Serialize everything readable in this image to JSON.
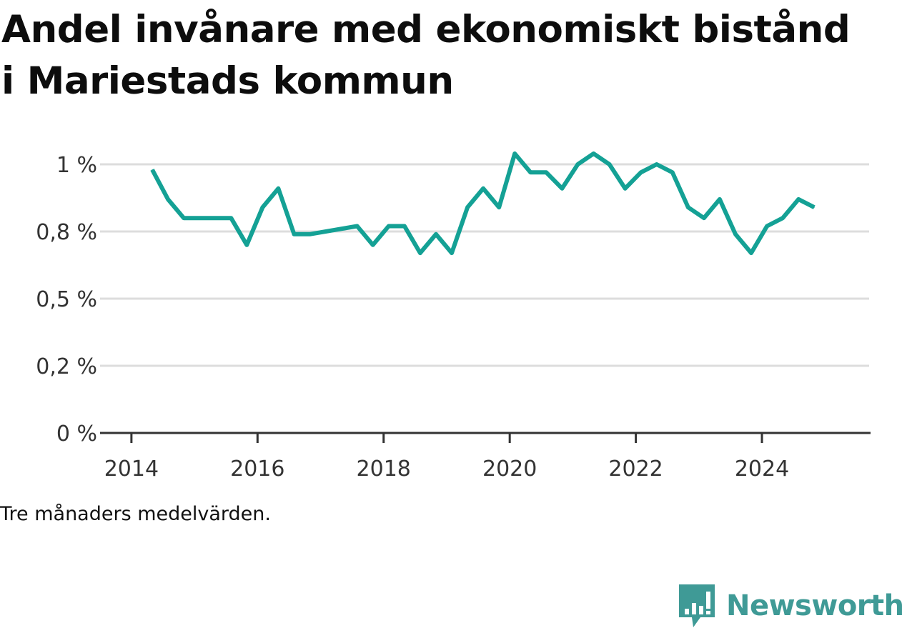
{
  "title": "Andel invånare med ekonomiskt bistånd i Mariestads kommun",
  "note": "Tre månaders medelvärden.",
  "brand": {
    "name": "Newsworthy",
    "icon": "newsworthy-logo-icon",
    "color": "#3f9a96"
  },
  "colors": {
    "line": "#14a195",
    "grid": "#dddddd",
    "axis": "#333333",
    "text": "#333333"
  },
  "chart_data": {
    "type": "line",
    "title": "Andel invånare med ekonomiskt bistånd i Mariestads kommun",
    "xlabel": "",
    "ylabel": "",
    "xlim": [
      2013.82,
      2025.7
    ],
    "ylim": [
      0,
      1.0
    ],
    "yticks": [
      {
        "value": 0,
        "label": "0 %"
      },
      {
        "value": 0.25,
        "label": "0,2 %"
      },
      {
        "value": 0.5,
        "label": "0,5 %"
      },
      {
        "value": 0.75,
        "label": "0,8 %"
      },
      {
        "value": 1.0,
        "label": "1 %"
      }
    ],
    "xticks": [
      {
        "value": 2014,
        "label": "2014"
      },
      {
        "value": 2016,
        "label": "2016"
      },
      {
        "value": 2018,
        "label": "2018"
      },
      {
        "value": 2020,
        "label": "2020"
      },
      {
        "value": 2022,
        "label": "2022"
      },
      {
        "value": 2024,
        "label": "2024"
      }
    ],
    "grid": true,
    "series": [
      {
        "x": [
          2014.33,
          2014.58,
          2014.83,
          2015.08,
          2015.33,
          2015.58,
          2015.83,
          2016.08,
          2016.33,
          2016.58,
          2016.83,
          2017.58,
          2017.83,
          2018.08,
          2018.33,
          2018.58,
          2018.83,
          2019.08,
          2019.33,
          2019.58,
          2019.83,
          2020.08,
          2020.33,
          2020.58,
          2020.83,
          2021.08,
          2021.33,
          2021.58,
          2021.83,
          2022.08,
          2022.33,
          2022.58,
          2022.83,
          2023.08,
          2023.33,
          2023.58,
          2023.83,
          2024.08,
          2024.33,
          2024.58,
          2024.83
        ],
        "values": [
          0.98,
          0.87,
          0.8,
          0.8,
          0.8,
          0.8,
          0.7,
          0.84,
          0.91,
          0.74,
          0.74,
          0.77,
          0.7,
          0.77,
          0.77,
          0.67,
          0.74,
          0.67,
          0.84,
          0.91,
          0.84,
          1.04,
          0.97,
          0.97,
          0.91,
          1.0,
          1.04,
          1.0,
          0.91,
          0.97,
          1.0,
          0.97,
          0.84,
          0.8,
          0.87,
          0.74,
          0.67,
          0.77,
          0.8,
          0.87,
          0.84
        ]
      }
    ]
  }
}
